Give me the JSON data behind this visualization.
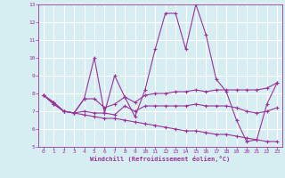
{
  "xlabel": "Windchill (Refroidissement éolien,°C)",
  "background_color": "#d6eef2",
  "grid_color": "#ffffff",
  "line_color": "#993399",
  "x_values": [
    0,
    1,
    2,
    3,
    4,
    5,
    6,
    7,
    8,
    9,
    10,
    11,
    12,
    13,
    14,
    15,
    16,
    17,
    18,
    19,
    20,
    21,
    22,
    23
  ],
  "line1": [
    7.9,
    7.5,
    7.0,
    6.9,
    7.7,
    10.0,
    6.9,
    9.0,
    7.8,
    6.7,
    8.2,
    10.5,
    12.5,
    12.5,
    10.5,
    13.0,
    11.3,
    8.8,
    8.1,
    6.5,
    5.3,
    5.4,
    7.4,
    8.6
  ],
  "line2": [
    7.9,
    7.5,
    7.0,
    6.9,
    7.7,
    7.7,
    7.2,
    7.4,
    7.8,
    7.5,
    7.9,
    8.0,
    8.0,
    8.1,
    8.1,
    8.2,
    8.1,
    8.2,
    8.2,
    8.2,
    8.2,
    8.2,
    8.3,
    8.6
  ],
  "line3": [
    7.9,
    7.4,
    7.0,
    6.9,
    7.0,
    6.9,
    6.9,
    6.8,
    7.3,
    7.0,
    7.3,
    7.3,
    7.3,
    7.3,
    7.3,
    7.4,
    7.3,
    7.3,
    7.3,
    7.2,
    7.0,
    6.9,
    7.0,
    7.2
  ],
  "line4": [
    7.9,
    7.4,
    7.0,
    6.9,
    6.8,
    6.7,
    6.6,
    6.6,
    6.5,
    6.4,
    6.3,
    6.2,
    6.1,
    6.0,
    5.9,
    5.9,
    5.8,
    5.7,
    5.7,
    5.6,
    5.5,
    5.4,
    5.3,
    5.3
  ],
  "ylim": [
    5,
    13
  ],
  "yticks": [
    5,
    6,
    7,
    8,
    9,
    10,
    11,
    12,
    13
  ],
  "xticks": [
    0,
    1,
    2,
    3,
    4,
    5,
    6,
    7,
    8,
    9,
    10,
    11,
    12,
    13,
    14,
    15,
    16,
    17,
    18,
    19,
    20,
    21,
    22,
    23
  ]
}
